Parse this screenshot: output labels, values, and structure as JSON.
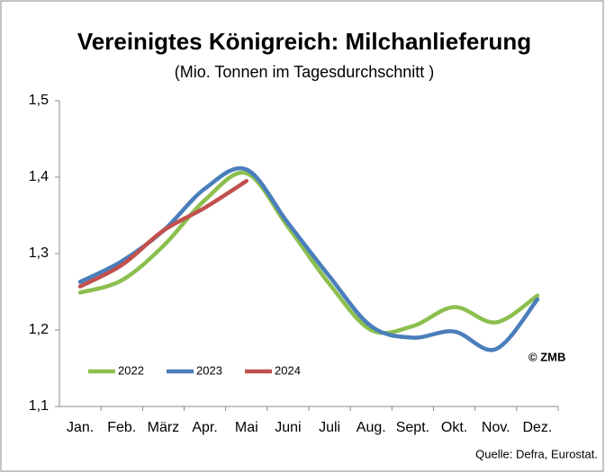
{
  "chart_data": {
    "type": "line",
    "title": "Vereinigtes Königreich: Milchanlieferung",
    "subtitle": "(Mio. Tonnen im Tagesdurchschnitt )",
    "categories": [
      "Jan.",
      "Feb.",
      "März",
      "Apr.",
      "Mai",
      "Juni",
      "Juli",
      "Aug.",
      "Sept.",
      "Okt.",
      "Nov.",
      "Dez."
    ],
    "series": [
      {
        "name": "2022",
        "color": "#8cbf4e",
        "values": [
          1.249,
          1.265,
          1.31,
          1.37,
          1.405,
          1.335,
          1.26,
          1.2,
          1.205,
          1.23,
          1.21,
          1.245
        ]
      },
      {
        "name": "2023",
        "color": "#4a7ebb",
        "values": [
          1.263,
          1.29,
          1.33,
          1.385,
          1.41,
          1.34,
          1.27,
          1.205,
          1.19,
          1.198,
          1.175,
          1.24
        ]
      },
      {
        "name": "2024",
        "color": "#c0504d",
        "values": [
          1.257,
          1.285,
          1.33,
          1.36,
          1.395,
          null,
          null,
          null,
          null,
          null,
          null,
          null
        ]
      }
    ],
    "ylim": [
      1.1,
      1.5
    ],
    "yticks": [
      {
        "value": 1.1,
        "label": "1,1"
      },
      {
        "value": 1.2,
        "label": "1,2"
      },
      {
        "value": 1.3,
        "label": "1,3"
      },
      {
        "value": 1.4,
        "label": "1,4"
      },
      {
        "value": 1.5,
        "label": "1,5"
      }
    ],
    "annotations": [
      "© ZMB",
      "Quelle: Defra, Eurostat."
    ],
    "legend": "bottom-left"
  }
}
